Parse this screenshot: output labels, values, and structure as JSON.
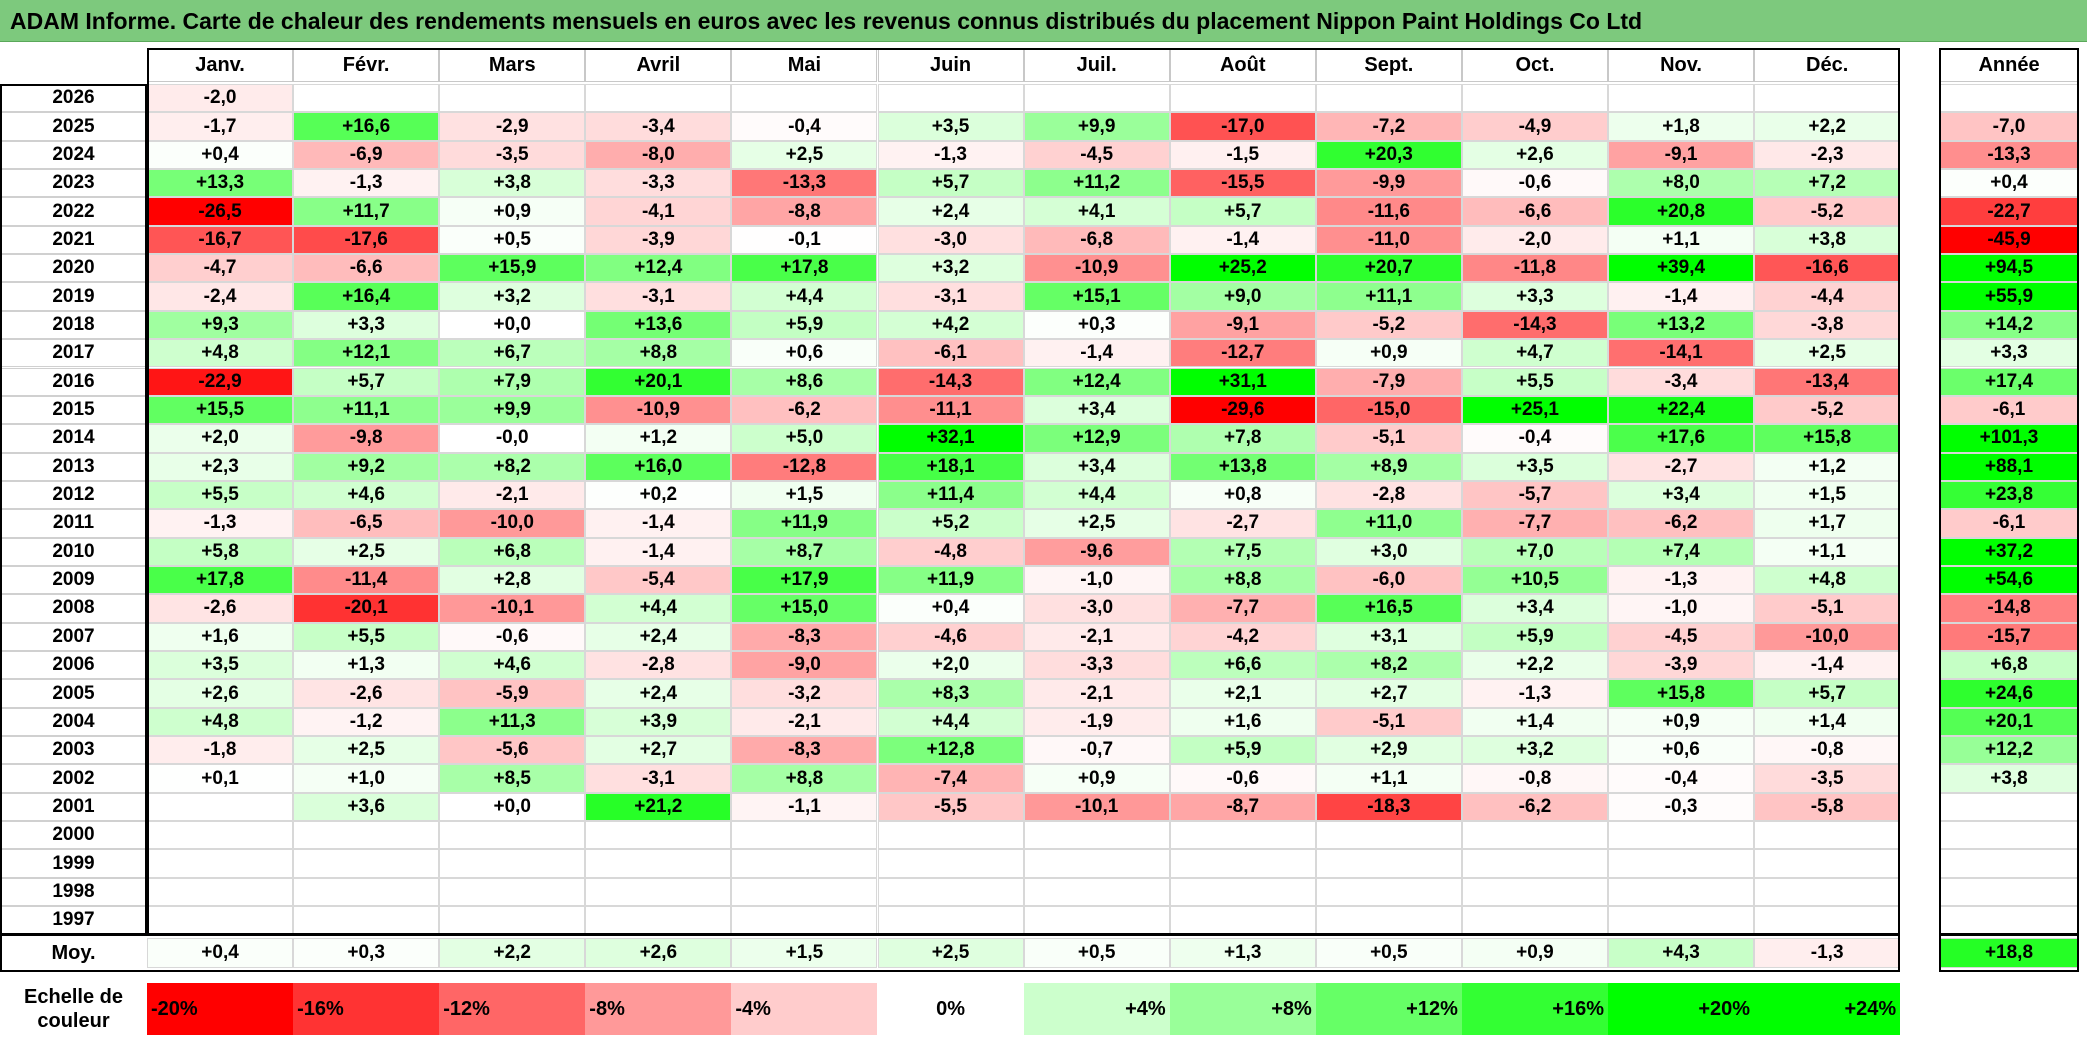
{
  "title": "ADAM Informe. Carte de chaleur des rendements mensuels en euros avec les revenus connus distribués du placement Nippon Paint Holdings Co Ltd",
  "months": [
    "Janv.",
    "Févr.",
    "Mars",
    "Avril",
    "Mai",
    "Juin",
    "Juil.",
    "Août",
    "Sept.",
    "Oct.",
    "Nov.",
    "Déc."
  ],
  "year_header": "Année",
  "avg_label": "Moy.",
  "scale_label": "Echelle de couleur",
  "colors": {
    "neg": "#ff0000",
    "pos": "#00ff00",
    "neutral": "#ffffff",
    "title_bg": "#7dc97d"
  },
  "chart_data": {
    "type": "heatmap",
    "title": "ADAM Informe. Carte de chaleur des rendements mensuels en euros avec les revenus connus distribués du placement Nippon Paint Holdings Co Ltd",
    "columns": [
      "Janv.",
      "Févr.",
      "Mars",
      "Avril",
      "Mai",
      "Juin",
      "Juil.",
      "Août",
      "Sept.",
      "Oct.",
      "Nov.",
      "Déc.",
      "Année"
    ],
    "rows": [
      {
        "year": "2026",
        "values": [
          "-2,0",
          "",
          "",
          "",
          "",
          "",
          "",
          "",
          "",
          "",
          "",
          ""
        ],
        "annual": ""
      },
      {
        "year": "2025",
        "values": [
          "-1,7",
          "+16,6",
          "-2,9",
          "-3,4",
          "-0,4",
          "+3,5",
          "+9,9",
          "-17,0",
          "-7,2",
          "-4,9",
          "+1,8",
          "+2,2"
        ],
        "annual": "-7,0"
      },
      {
        "year": "2024",
        "values": [
          "+0,4",
          "-6,9",
          "-3,5",
          "-8,0",
          "+2,5",
          "-1,3",
          "-4,5",
          "-1,5",
          "+20,3",
          "+2,6",
          "-9,1",
          "-2,3"
        ],
        "annual": "-13,3"
      },
      {
        "year": "2023",
        "values": [
          "+13,3",
          "-1,3",
          "+3,8",
          "-3,3",
          "-13,3",
          "+5,7",
          "+11,2",
          "-15,5",
          "-9,9",
          "-0,6",
          "+8,0",
          "+7,2"
        ],
        "annual": "+0,4"
      },
      {
        "year": "2022",
        "values": [
          "-26,5",
          "+11,7",
          "+0,9",
          "-4,1",
          "-8,8",
          "+2,4",
          "+4,1",
          "+5,7",
          "-11,6",
          "-6,6",
          "+20,8",
          "-5,2"
        ],
        "annual": "-22,7"
      },
      {
        "year": "2021",
        "values": [
          "-16,7",
          "-17,6",
          "+0,5",
          "-3,9",
          "-0,1",
          "-3,0",
          "-6,8",
          "-1,4",
          "-11,0",
          "-2,0",
          "+1,1",
          "+3,8"
        ],
        "annual": "-45,9"
      },
      {
        "year": "2020",
        "values": [
          "-4,7",
          "-6,6",
          "+15,9",
          "+12,4",
          "+17,8",
          "+3,2",
          "-10,9",
          "+25,2",
          "+20,7",
          "-11,8",
          "+39,4",
          "-16,6"
        ],
        "annual": "+94,5"
      },
      {
        "year": "2019",
        "values": [
          "-2,4",
          "+16,4",
          "+3,2",
          "-3,1",
          "+4,4",
          "-3,1",
          "+15,1",
          "+9,0",
          "+11,1",
          "+3,3",
          "-1,4",
          "-4,4"
        ],
        "annual": "+55,9"
      },
      {
        "year": "2018",
        "values": [
          "+9,3",
          "+3,3",
          "+0,0",
          "+13,6",
          "+5,9",
          "+4,2",
          "+0,3",
          "-9,1",
          "-5,2",
          "-14,3",
          "+13,2",
          "-3,8"
        ],
        "annual": "+14,2"
      },
      {
        "year": "2017",
        "values": [
          "+4,8",
          "+12,1",
          "+6,7",
          "+8,8",
          "+0,6",
          "-6,1",
          "-1,4",
          "-12,7",
          "+0,9",
          "+4,7",
          "-14,1",
          "+2,5"
        ],
        "annual": "+3,3"
      },
      {
        "year": "2016",
        "values": [
          "-22,9",
          "+5,7",
          "+7,9",
          "+20,1",
          "+8,6",
          "-14,3",
          "+12,4",
          "+31,1",
          "-7,9",
          "+5,5",
          "-3,4",
          "-13,4"
        ],
        "annual": "+17,4"
      },
      {
        "year": "2015",
        "values": [
          "+15,5",
          "+11,1",
          "+9,9",
          "-10,9",
          "-6,2",
          "-11,1",
          "+3,4",
          "-29,6",
          "-15,0",
          "+25,1",
          "+22,4",
          "-5,2"
        ],
        "annual": "-6,1"
      },
      {
        "year": "2014",
        "values": [
          "+2,0",
          "-9,8",
          "-0,0",
          "+1,2",
          "+5,0",
          "+32,1",
          "+12,9",
          "+7,8",
          "-5,1",
          "-0,4",
          "+17,6",
          "+15,8"
        ],
        "annual": "+101,3"
      },
      {
        "year": "2013",
        "values": [
          "+2,3",
          "+9,2",
          "+8,2",
          "+16,0",
          "-12,8",
          "+18,1",
          "+3,4",
          "+13,8",
          "+8,9",
          "+3,5",
          "-2,7",
          "+1,2"
        ],
        "annual": "+88,1"
      },
      {
        "year": "2012",
        "values": [
          "+5,5",
          "+4,6",
          "-2,1",
          "+0,2",
          "+1,5",
          "+11,4",
          "+4,4",
          "+0,8",
          "-2,8",
          "-5,7",
          "+3,4",
          "+1,5"
        ],
        "annual": "+23,8"
      },
      {
        "year": "2011",
        "values": [
          "-1,3",
          "-6,5",
          "-10,0",
          "-1,4",
          "+11,9",
          "+5,2",
          "+2,5",
          "-2,7",
          "+11,0",
          "-7,7",
          "-6,2",
          "+1,7"
        ],
        "annual": "-6,1"
      },
      {
        "year": "2010",
        "values": [
          "+5,8",
          "+2,5",
          "+6,8",
          "-1,4",
          "+8,7",
          "-4,8",
          "-9,6",
          "+7,5",
          "+3,0",
          "+7,0",
          "+7,4",
          "+1,1"
        ],
        "annual": "+37,2"
      },
      {
        "year": "2009",
        "values": [
          "+17,8",
          "-11,4",
          "+2,8",
          "-5,4",
          "+17,9",
          "+11,9",
          "-1,0",
          "+8,8",
          "-6,0",
          "+10,5",
          "-1,3",
          "+4,8"
        ],
        "annual": "+54,6"
      },
      {
        "year": "2008",
        "values": [
          "-2,6",
          "-20,1",
          "-10,1",
          "+4,4",
          "+15,0",
          "+0,4",
          "-3,0",
          "-7,7",
          "+16,5",
          "+3,4",
          "-1,0",
          "-5,1"
        ],
        "annual": "-14,8"
      },
      {
        "year": "2007",
        "values": [
          "+1,6",
          "+5,5",
          "-0,6",
          "+2,4",
          "-8,3",
          "-4,6",
          "-2,1",
          "-4,2",
          "+3,1",
          "+5,9",
          "-4,5",
          "-10,0"
        ],
        "annual": "-15,7"
      },
      {
        "year": "2006",
        "values": [
          "+3,5",
          "+1,3",
          "+4,6",
          "-2,8",
          "-9,0",
          "+2,0",
          "-3,3",
          "+6,6",
          "+8,2",
          "+2,2",
          "-3,9",
          "-1,4"
        ],
        "annual": "+6,8"
      },
      {
        "year": "2005",
        "values": [
          "+2,6",
          "-2,6",
          "-5,9",
          "+2,4",
          "-3,2",
          "+8,3",
          "-2,1",
          "+2,1",
          "+2,7",
          "-1,3",
          "+15,8",
          "+5,7"
        ],
        "annual": "+24,6"
      },
      {
        "year": "2004",
        "values": [
          "+4,8",
          "-1,2",
          "+11,3",
          "+3,9",
          "-2,1",
          "+4,4",
          "-1,9",
          "+1,6",
          "-5,1",
          "+1,4",
          "+0,9",
          "+1,4"
        ],
        "annual": "+20,1"
      },
      {
        "year": "2003",
        "values": [
          "-1,8",
          "+2,5",
          "-5,6",
          "+2,7",
          "-8,3",
          "+12,8",
          "-0,7",
          "+5,9",
          "+2,9",
          "+3,2",
          "+0,6",
          "-0,8"
        ],
        "annual": "+12,2"
      },
      {
        "year": "2002",
        "values": [
          "+0,1",
          "+1,0",
          "+8,5",
          "-3,1",
          "+8,8",
          "-7,4",
          "+0,9",
          "-0,6",
          "+1,1",
          "-0,8",
          "-0,4",
          "-3,5"
        ],
        "annual": "+3,8"
      },
      {
        "year": "2001",
        "values": [
          "",
          "+3,6",
          "+0,0",
          "+21,2",
          "-1,1",
          "-5,5",
          "-10,1",
          "-8,7",
          "-18,3",
          "-6,2",
          "-0,3",
          "-5,8"
        ],
        "annual": ""
      },
      {
        "year": "2000",
        "values": [
          "",
          "",
          "",
          "",
          "",
          "",
          "",
          "",
          "",
          "",
          "",
          ""
        ],
        "annual": ""
      },
      {
        "year": "1999",
        "values": [
          "",
          "",
          "",
          "",
          "",
          "",
          "",
          "",
          "",
          "",
          "",
          ""
        ],
        "annual": ""
      },
      {
        "year": "1998",
        "values": [
          "",
          "",
          "",
          "",
          "",
          "",
          "",
          "",
          "",
          "",
          "",
          ""
        ],
        "annual": ""
      },
      {
        "year": "1997",
        "values": [
          "",
          "",
          "",
          "",
          "",
          "",
          "",
          "",
          "",
          "",
          "",
          ""
        ],
        "annual": ""
      }
    ],
    "averages": [
      "+0,4",
      "+0,3",
      "+2,2",
      "+2,6",
      "+1,5",
      "+2,5",
      "+0,5",
      "+1,3",
      "+0,5",
      "+0,9",
      "+4,3",
      "-1,3"
    ],
    "average_annual": "+18,8",
    "color_scale": [
      "-20%",
      "-16%",
      "-12%",
      "-8%",
      "-4%",
      "0%",
      "+4%",
      "+8%",
      "+12%",
      "+16%",
      "+20%",
      "+24%"
    ]
  }
}
